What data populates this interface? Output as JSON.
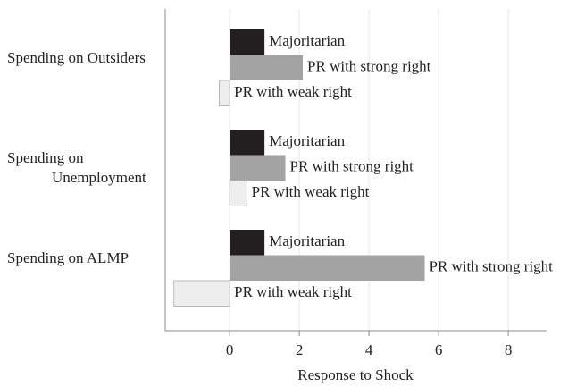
{
  "chart_data": {
    "type": "bar",
    "orientation": "horizontal",
    "categories": [
      "Spending on Outsiders",
      "Spending on Unemployment",
      "Spending on ALMP"
    ],
    "series": [
      {
        "name": "Majoritarian",
        "color": "#231f20",
        "values": [
          1.0,
          1.0,
          1.0
        ]
      },
      {
        "name": "PR with strong right",
        "color": "#a3a3a3",
        "values": [
          2.1,
          1.6,
          5.6
        ]
      },
      {
        "name": "PR with weak right",
        "color": "#eeeeee",
        "values": [
          -0.3,
          0.5,
          -1.6
        ]
      }
    ],
    "x_label": "Response to Shock",
    "xlim": [
      -1.85,
      9.1
    ],
    "xticks": [
      0,
      2,
      4,
      6,
      8
    ],
    "grid": true
  }
}
